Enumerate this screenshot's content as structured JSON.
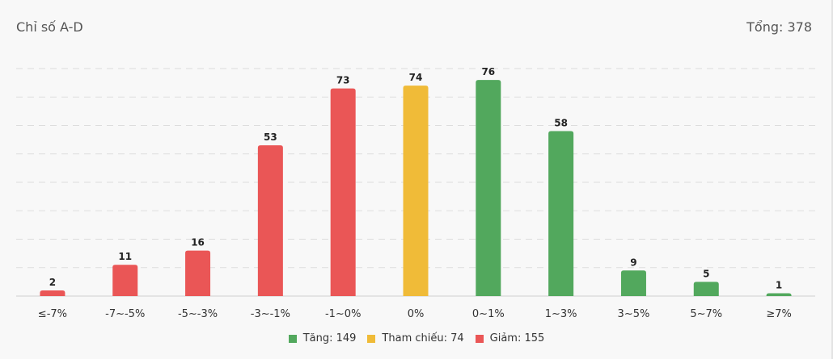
{
  "header": {
    "title": "Chỉ số A-D",
    "total": "Tổng: 378"
  },
  "colors": {
    "up": "#52a85d",
    "ref": "#f0bb38",
    "down": "#ea5656"
  },
  "legend": [
    {
      "label": "Tăng: 149",
      "color": "#52a85d"
    },
    {
      "label": "Tham chiếu: 74",
      "color": "#f0bb38"
    },
    {
      "label": "Giảm: 155",
      "color": "#ea5656"
    }
  ],
  "chart_data": {
    "type": "bar",
    "title": "Chỉ số A-D",
    "categories": [
      "≤-7%",
      "-7~-5%",
      "-5~-3%",
      "-3~-1%",
      "-1~0%",
      "0%",
      "0~1%",
      "1~3%",
      "3~5%",
      "5~7%",
      "≥7%"
    ],
    "values": [
      2,
      11,
      16,
      53,
      73,
      74,
      76,
      58,
      9,
      5,
      1
    ],
    "bar_colors": [
      "down",
      "down",
      "down",
      "down",
      "down",
      "ref",
      "up",
      "up",
      "up",
      "up",
      "up"
    ],
    "data_labels": [
      "2",
      "11",
      "16",
      "53",
      "73",
      "74",
      "76",
      "58",
      "9",
      "5",
      "1"
    ],
    "ylim": [
      0,
      80
    ],
    "grid": true,
    "legend_position": "bottom"
  }
}
